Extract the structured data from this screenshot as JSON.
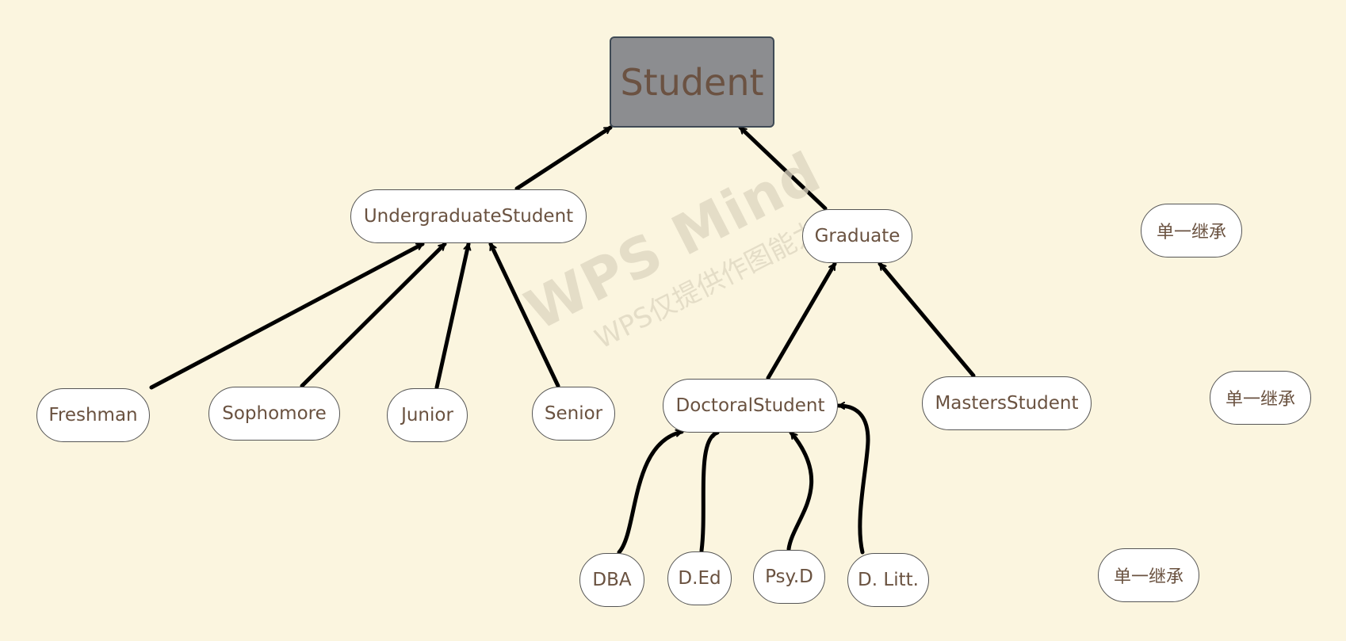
{
  "diagram": {
    "root": {
      "id": "student",
      "label": "Student"
    },
    "nodes": [
      {
        "id": "undergrad",
        "label": "UndergraduateStudent"
      },
      {
        "id": "graduate",
        "label": "Graduate"
      },
      {
        "id": "freshman",
        "label": "Freshman"
      },
      {
        "id": "sophomore",
        "label": "Sophomore"
      },
      {
        "id": "junior",
        "label": "Junior"
      },
      {
        "id": "senior",
        "label": "Senior"
      },
      {
        "id": "doctoral",
        "label": "DoctoralStudent"
      },
      {
        "id": "masters",
        "label": "MastersStudent"
      },
      {
        "id": "dba",
        "label": "DBA"
      },
      {
        "id": "ded",
        "label": "D.Ed"
      },
      {
        "id": "psyd",
        "label": "Psy.D"
      },
      {
        "id": "dlitt",
        "label": "D. Litt."
      }
    ],
    "notes": [
      {
        "id": "note1",
        "label": "单一继承"
      },
      {
        "id": "note2",
        "label": "单一继承"
      },
      {
        "id": "note3",
        "label": "单一继承"
      }
    ],
    "edges": [
      {
        "from": "undergrad",
        "to": "student"
      },
      {
        "from": "graduate",
        "to": "student"
      },
      {
        "from": "freshman",
        "to": "undergrad"
      },
      {
        "from": "sophomore",
        "to": "undergrad"
      },
      {
        "from": "junior",
        "to": "undergrad"
      },
      {
        "from": "senior",
        "to": "undergrad"
      },
      {
        "from": "doctoral",
        "to": "graduate"
      },
      {
        "from": "masters",
        "to": "graduate"
      },
      {
        "from": "dba",
        "to": "doctoral"
      },
      {
        "from": "ded",
        "to": "doctoral"
      },
      {
        "from": "psyd",
        "to": "doctoral"
      },
      {
        "from": "dlitt",
        "to": "doctoral"
      }
    ]
  },
  "watermark": {
    "main": "WPS Mind",
    "sub": "WPS仅提供作图能力"
  }
}
